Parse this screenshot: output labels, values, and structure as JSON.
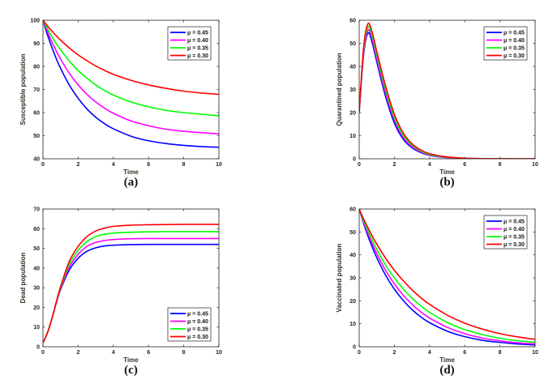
{
  "chart_data": [
    {
      "type": "line",
      "panel_label": "(a)",
      "title": "",
      "xlabel": "Time",
      "ylabel": "Susceptible population",
      "xlim": [
        0,
        10
      ],
      "ylim": [
        40,
        100
      ],
      "xticks": [
        0,
        2,
        4,
        6,
        8,
        10
      ],
      "yticks": [
        40,
        50,
        60,
        70,
        80,
        90,
        100
      ],
      "legend_position": "top-right",
      "x": [
        0,
        0.25,
        0.5,
        0.75,
        1,
        1.5,
        2,
        2.5,
        3,
        3.5,
        4,
        5,
        6,
        7,
        8,
        9,
        10
      ],
      "series": [
        {
          "name": "μ = 0.45",
          "color": "#0000ff",
          "values": [
            100,
            93.8,
            88.4,
            83.5,
            79.2,
            71.9,
            66.2,
            61.6,
            58.0,
            55.2,
            53.0,
            49.8,
            47.8,
            46.6,
            45.8,
            45.3,
            45.0
          ]
        },
        {
          "name": "μ = 0.40",
          "color": "#ff00ff",
          "values": [
            100,
            95.2,
            90.7,
            86.8,
            83.2,
            77.0,
            72.0,
            67.9,
            64.6,
            61.9,
            59.7,
            56.4,
            54.3,
            52.8,
            51.9,
            51.3,
            50.8
          ]
        },
        {
          "name": "μ = 0.35",
          "color": "#00ff00",
          "values": [
            100,
            96.4,
            93.0,
            89.9,
            87.2,
            82.3,
            78.2,
            74.9,
            72.0,
            69.6,
            67.6,
            64.6,
            62.5,
            61.0,
            60.0,
            59.3,
            58.6
          ]
        },
        {
          "name": "μ = 0.30",
          "color": "#ff0000",
          "values": [
            100,
            97.6,
            95.4,
            93.3,
            91.4,
            88.0,
            85.0,
            82.5,
            80.2,
            78.3,
            76.6,
            74.0,
            72.0,
            70.5,
            69.3,
            68.5,
            67.9
          ]
        }
      ]
    },
    {
      "type": "line",
      "panel_label": "(b)",
      "title": "",
      "xlabel": "Time",
      "ylabel": "Quarantined population",
      "xlim": [
        0,
        10
      ],
      "ylim": [
        0,
        60
      ],
      "xticks": [
        0,
        2,
        4,
        6,
        8,
        10
      ],
      "yticks": [
        0,
        10,
        20,
        30,
        40,
        50,
        60
      ],
      "legend_position": "top-right",
      "x": [
        0,
        0.25,
        0.5,
        0.75,
        1,
        1.5,
        2,
        2.5,
        3,
        3.5,
        4,
        5,
        6,
        7,
        8,
        9,
        10
      ],
      "series": [
        {
          "name": "μ = 0.45",
          "color": "#0000ff",
          "values": [
            20,
            45,
            54.5,
            50,
            42,
            27,
            15.5,
            8.5,
            4.8,
            2.7,
            1.5,
            0.5,
            0.15,
            0.05,
            0,
            0,
            0
          ]
        },
        {
          "name": "μ = 0.40",
          "color": "#ff00ff",
          "values": [
            20,
            46,
            55.8,
            51.5,
            43.5,
            28.5,
            16.8,
            9.3,
            5.3,
            3.0,
            1.7,
            0.6,
            0.2,
            0.06,
            0,
            0,
            0
          ]
        },
        {
          "name": "μ = 0.35",
          "color": "#00ff00",
          "values": [
            20,
            47,
            57.2,
            53,
            45,
            30,
            18,
            10.2,
            5.9,
            3.4,
            1.9,
            0.7,
            0.22,
            0.07,
            0.02,
            0,
            0
          ]
        },
        {
          "name": "μ = 0.30",
          "color": "#ff0000",
          "values": [
            20,
            48,
            58.5,
            54.5,
            46.5,
            31.5,
            19.3,
            11.2,
            6.5,
            3.8,
            2.2,
            0.8,
            0.26,
            0.08,
            0.02,
            0,
            0
          ]
        }
      ]
    },
    {
      "type": "line",
      "panel_label": "(c)",
      "title": "",
      "xlabel": "Time",
      "ylabel": "Dead population",
      "xlim": [
        0,
        10
      ],
      "ylim": [
        0,
        70
      ],
      "xticks": [
        0,
        2,
        4,
        6,
        8,
        10
      ],
      "yticks": [
        0,
        10,
        20,
        30,
        40,
        50,
        60,
        70
      ],
      "legend_position": "bottom-right",
      "x": [
        0,
        0.25,
        0.5,
        0.75,
        1,
        1.5,
        2,
        2.5,
        3,
        3.5,
        4,
        5,
        6,
        7,
        8,
        9,
        10
      ],
      "series": [
        {
          "name": "μ = 0.45",
          "color": "#0000ff",
          "values": [
            2,
            7,
            14,
            22,
            29,
            39,
            45,
            48.5,
            50.3,
            51.2,
            51.6,
            51.9,
            52,
            52,
            52,
            52,
            52
          ]
        },
        {
          "name": "μ = 0.40",
          "color": "#ff00ff",
          "values": [
            2,
            7,
            14,
            22,
            29.5,
            40.5,
            47,
            51,
            53,
            54,
            54.5,
            54.9,
            55,
            55,
            55,
            55,
            55
          ]
        },
        {
          "name": "μ = 0.35",
          "color": "#00ff00",
          "values": [
            2,
            7,
            14,
            22.5,
            30,
            42,
            49,
            53.5,
            56,
            57.2,
            57.8,
            58.2,
            58.4,
            58.5,
            58.5,
            58.5,
            58.5
          ]
        },
        {
          "name": "μ = 0.30",
          "color": "#ff0000",
          "values": [
            2,
            7,
            14,
            22.5,
            30.5,
            43.5,
            51,
            56,
            58.8,
            60.3,
            61.2,
            61.8,
            62,
            62.1,
            62.2,
            62.2,
            62.2
          ]
        }
      ]
    },
    {
      "type": "line",
      "panel_label": "(d)",
      "title": "",
      "xlabel": "Time",
      "ylabel": "Vaccinated population",
      "xlim": [
        0,
        10
      ],
      "ylim": [
        0,
        60
      ],
      "xticks": [
        0,
        2,
        4,
        6,
        8,
        10
      ],
      "yticks": [
        0,
        10,
        20,
        30,
        40,
        50,
        60
      ],
      "legend_position": "top-right",
      "x": [
        0,
        0.25,
        0.5,
        0.75,
        1,
        1.5,
        2,
        2.5,
        3,
        3.5,
        4,
        5,
        6,
        7,
        8,
        9,
        10
      ],
      "series": [
        {
          "name": "μ = 0.45",
          "color": "#0000ff",
          "values": [
            60,
            53.8,
            48.2,
            43.3,
            38.8,
            31.2,
            25.1,
            20.2,
            16.2,
            13.0,
            10.5,
            6.8,
            4.4,
            2.8,
            1.9,
            1.2,
            0.8
          ]
        },
        {
          "name": "μ = 0.40",
          "color": "#ff00ff",
          "values": [
            60,
            54.4,
            49.3,
            44.7,
            40.6,
            33.3,
            27.4,
            22.5,
            18.5,
            15.2,
            12.5,
            8.5,
            5.7,
            3.8,
            2.6,
            1.7,
            1.2
          ]
        },
        {
          "name": "μ = 0.35",
          "color": "#00ff00",
          "values": [
            60,
            55.0,
            50.5,
            46.3,
            42.4,
            35.6,
            30.0,
            25.2,
            21.2,
            17.8,
            15.0,
            10.6,
            7.5,
            5.3,
            3.7,
            2.6,
            1.9
          ]
        },
        {
          "name": "μ = 0.30",
          "color": "#ff0000",
          "values": [
            60,
            55.7,
            51.8,
            48.1,
            44.7,
            38.6,
            33.3,
            28.8,
            24.8,
            21.4,
            18.5,
            13.8,
            10.3,
            7.7,
            5.7,
            4.3,
            3.2
          ]
        }
      ]
    }
  ]
}
